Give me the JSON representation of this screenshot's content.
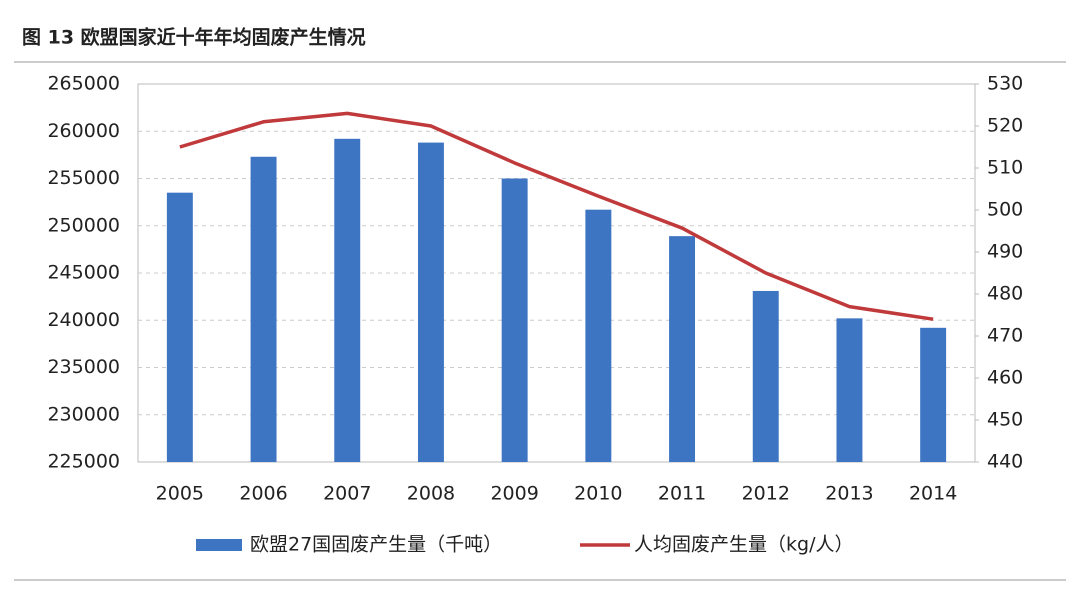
{
  "chart_data": {
    "type": "bar-line",
    "title": "图 13  欧盟国家近十年年均固废产生情况",
    "categories": [
      "2005",
      "2006",
      "2007",
      "2008",
      "2009",
      "2010",
      "2011",
      "2012",
      "2013",
      "2014"
    ],
    "series": [
      {
        "name": "欧盟27国固废产生量（千吨）",
        "type": "bar",
        "color": "#3e75c2",
        "values": [
          253500,
          257300,
          259200,
          258800,
          255000,
          251700,
          248900,
          243100,
          240200,
          239200
        ]
      },
      {
        "name": "人均固废产生量（kg/人）",
        "type": "line",
        "axis": "y2",
        "color": "#c0393b",
        "values": [
          515,
          521,
          523,
          520,
          511.2,
          503.3,
          495.7,
          485,
          477,
          474
        ]
      }
    ],
    "ylim": [
      225000,
      265000
    ],
    "yticks": [
      225000,
      230000,
      235000,
      240000,
      245000,
      250000,
      255000,
      260000,
      265000
    ],
    "y2lim": [
      440,
      530
    ],
    "y2ticks": [
      440,
      450,
      460,
      470,
      480,
      490,
      500,
      510,
      520,
      530
    ],
    "grid": true,
    "legend": "bottom"
  }
}
